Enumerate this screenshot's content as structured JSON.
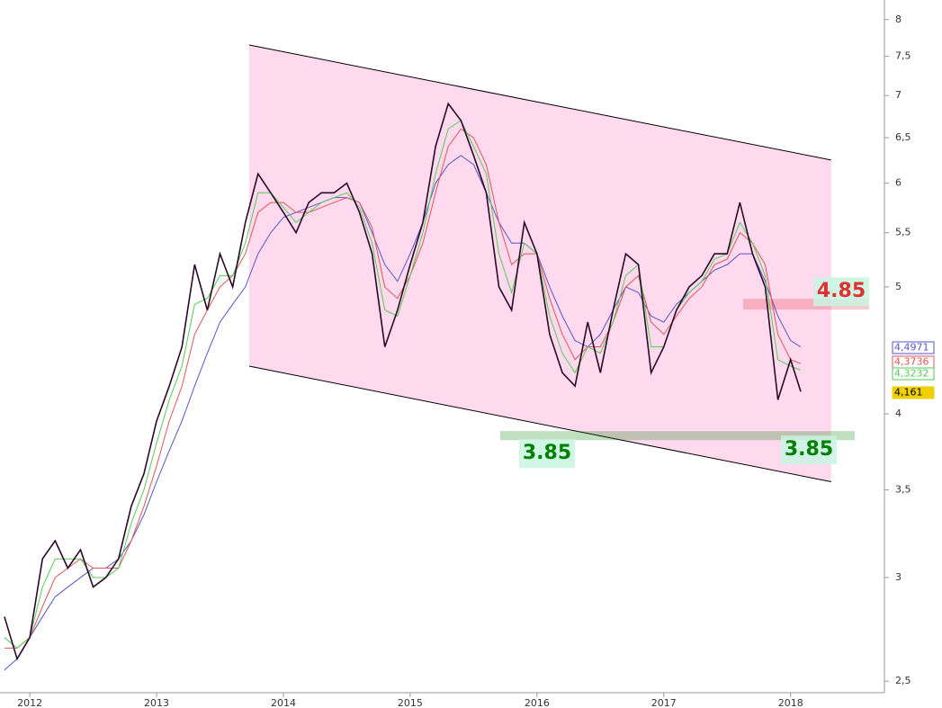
{
  "chart_data": {
    "type": "line",
    "log_scale": true,
    "x": [
      2011.8,
      2011.9,
      2012.0,
      2012.1,
      2012.2,
      2012.3,
      2012.4,
      2012.5,
      2012.6,
      2012.7,
      2012.8,
      2012.9,
      2013.0,
      2013.1,
      2013.2,
      2013.3,
      2013.4,
      2013.5,
      2013.6,
      2013.7,
      2013.8,
      2013.9,
      2014.0,
      2014.1,
      2014.2,
      2014.3,
      2014.4,
      2014.5,
      2014.6,
      2014.7,
      2014.8,
      2014.9,
      2015.0,
      2015.1,
      2015.2,
      2015.3,
      2015.4,
      2015.5,
      2015.6,
      2015.7,
      2015.8,
      2015.9,
      2016.0,
      2016.1,
      2016.2,
      2016.3,
      2016.4,
      2016.5,
      2016.6,
      2016.7,
      2016.8,
      2016.9,
      2017.0,
      2017.1,
      2017.2,
      2017.3,
      2017.4,
      2017.5,
      2017.6,
      2017.7,
      2017.8,
      2017.9,
      2018.0,
      2018.08
    ],
    "series": [
      {
        "color": "#5555cc",
        "values": [
          2.55,
          2.6,
          2.7,
          2.8,
          2.9,
          2.95,
          3.0,
          3.05,
          3.05,
          3.1,
          3.2,
          3.35,
          3.55,
          3.75,
          3.95,
          4.2,
          4.45,
          4.7,
          4.85,
          5.0,
          5.3,
          5.5,
          5.65,
          5.7,
          5.75,
          5.8,
          5.85,
          5.85,
          5.8,
          5.5,
          5.2,
          5.05,
          5.3,
          5.6,
          6.0,
          6.2,
          6.3,
          6.2,
          5.9,
          5.6,
          5.4,
          5.4,
          5.3,
          5.0,
          4.75,
          4.55,
          4.5,
          4.6,
          4.8,
          5.0,
          4.95,
          4.75,
          4.7,
          4.85,
          4.95,
          5.05,
          5.15,
          5.2,
          5.3,
          5.3,
          5.05,
          4.75,
          4.55,
          4.5
        ]
      },
      {
        "color": "#e05555",
        "values": [
          2.65,
          2.65,
          2.7,
          2.85,
          3.0,
          3.05,
          3.1,
          3.05,
          3.05,
          3.05,
          3.2,
          3.4,
          3.65,
          3.95,
          4.2,
          4.6,
          4.8,
          5.0,
          5.1,
          5.3,
          5.7,
          5.8,
          5.8,
          5.7,
          5.7,
          5.75,
          5.8,
          5.85,
          5.8,
          5.55,
          5.0,
          4.9,
          5.1,
          5.4,
          5.9,
          6.4,
          6.6,
          6.5,
          6.2,
          5.6,
          5.2,
          5.3,
          5.3,
          4.9,
          4.6,
          4.4,
          4.5,
          4.5,
          4.7,
          5.0,
          5.1,
          4.7,
          4.6,
          4.75,
          4.9,
          5.0,
          5.2,
          5.25,
          5.5,
          5.4,
          5.2,
          4.6,
          4.4,
          4.37
        ]
      },
      {
        "color": "#55cc55",
        "values": [
          2.7,
          2.65,
          2.7,
          2.95,
          3.1,
          3.1,
          3.1,
          3.0,
          3.0,
          3.05,
          3.3,
          3.5,
          3.8,
          4.1,
          4.35,
          4.85,
          4.9,
          5.1,
          5.1,
          5.4,
          5.9,
          5.9,
          5.75,
          5.6,
          5.7,
          5.8,
          5.85,
          5.9,
          5.75,
          5.4,
          4.8,
          4.75,
          5.1,
          5.5,
          6.1,
          6.6,
          6.7,
          6.4,
          6.1,
          5.3,
          4.95,
          5.4,
          5.3,
          4.75,
          4.45,
          4.3,
          4.5,
          4.45,
          4.7,
          5.1,
          5.2,
          4.5,
          4.5,
          4.8,
          4.95,
          5.05,
          5.25,
          5.3,
          5.6,
          5.4,
          5.1,
          4.4,
          4.35,
          4.32
        ]
      },
      {
        "color": "#2a0a2a",
        "values": [
          2.8,
          2.6,
          2.7,
          3.1,
          3.2,
          3.05,
          3.15,
          2.95,
          3.0,
          3.1,
          3.4,
          3.6,
          3.95,
          4.2,
          4.5,
          5.2,
          4.8,
          5.3,
          5.0,
          5.6,
          6.1,
          5.9,
          5.7,
          5.5,
          5.8,
          5.9,
          5.9,
          6.0,
          5.7,
          5.3,
          4.5,
          4.8,
          5.2,
          5.6,
          6.4,
          6.9,
          6.7,
          6.3,
          5.9,
          5.0,
          4.8,
          5.6,
          5.3,
          4.6,
          4.3,
          4.2,
          4.7,
          4.3,
          4.8,
          5.3,
          5.2,
          4.3,
          4.5,
          4.8,
          5.0,
          5.1,
          5.3,
          5.3,
          5.8,
          5.3,
          5.0,
          4.1,
          4.4,
          4.16
        ]
      }
    ],
    "xlim": [
      2011.765,
      2018.74
    ],
    "xticks": [
      2012,
      2013,
      2014,
      2015,
      2016,
      2017,
      2018
    ],
    "ylim": [
      2.45,
      8.28
    ],
    "yticks": [
      {
        "value": 2.5,
        "label": "2,5"
      },
      3,
      {
        "value": 3.5,
        "label": "3,5"
      },
      4,
      5,
      {
        "value": 5.5,
        "label": "5,5"
      },
      6,
      {
        "value": 6.5,
        "label": "6,5"
      },
      7,
      {
        "value": 7.5,
        "label": "7,5"
      },
      8
    ],
    "channel": {
      "x": [
        2013.73,
        2018.32
      ],
      "upper": [
        7.65,
        6.25
      ],
      "lower": [
        4.35,
        3.55
      ]
    },
    "levels": [
      {
        "value": 4.85,
        "label": "4.85",
        "color": "#e03030"
      },
      {
        "value": 3.85,
        "label": "3.85",
        "color": "#008000"
      }
    ],
    "last_labels": [
      {
        "value": 4.4971,
        "label": "4,4971",
        "color": "#5555cc"
      },
      {
        "value": 4.3736,
        "label": "4,3736",
        "color": "#e05555"
      },
      {
        "value": 4.3232,
        "label": "4,3232",
        "color": "#55cc55"
      },
      {
        "value": 4.161,
        "label": "4,161",
        "color": "#f0d000"
      }
    ]
  }
}
